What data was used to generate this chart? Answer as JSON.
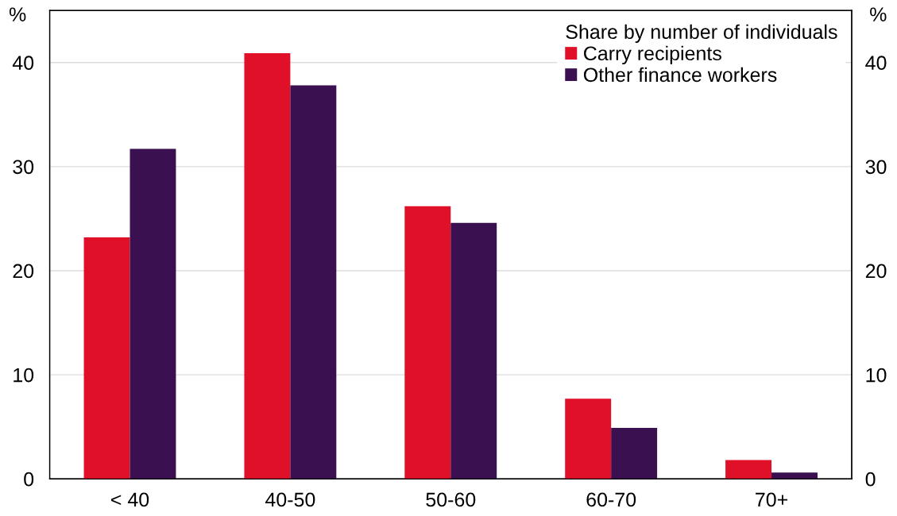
{
  "chart_data": {
    "type": "bar",
    "ylabel": "%",
    "y2label": "%",
    "legend_title": "Share by number of individuals",
    "categories": [
      "< 40",
      "40-50",
      "50-60",
      "60-70",
      "70+"
    ],
    "series": [
      {
        "name": "Carry recipients",
        "color": "#e11029",
        "values": [
          23.2,
          40.9,
          26.2,
          7.7,
          1.8
        ]
      },
      {
        "name": "Other finance workers",
        "color": "#3b1050",
        "values": [
          31.7,
          37.8,
          24.6,
          4.9,
          0.6
        ]
      }
    ],
    "ylim": [
      0,
      45
    ],
    "yticks": [
      0,
      10,
      20,
      30,
      40
    ],
    "y2lim": [
      0,
      45
    ],
    "y2ticks": [
      0,
      10,
      20,
      30,
      40
    ],
    "grid": "y",
    "legend": "top right"
  }
}
